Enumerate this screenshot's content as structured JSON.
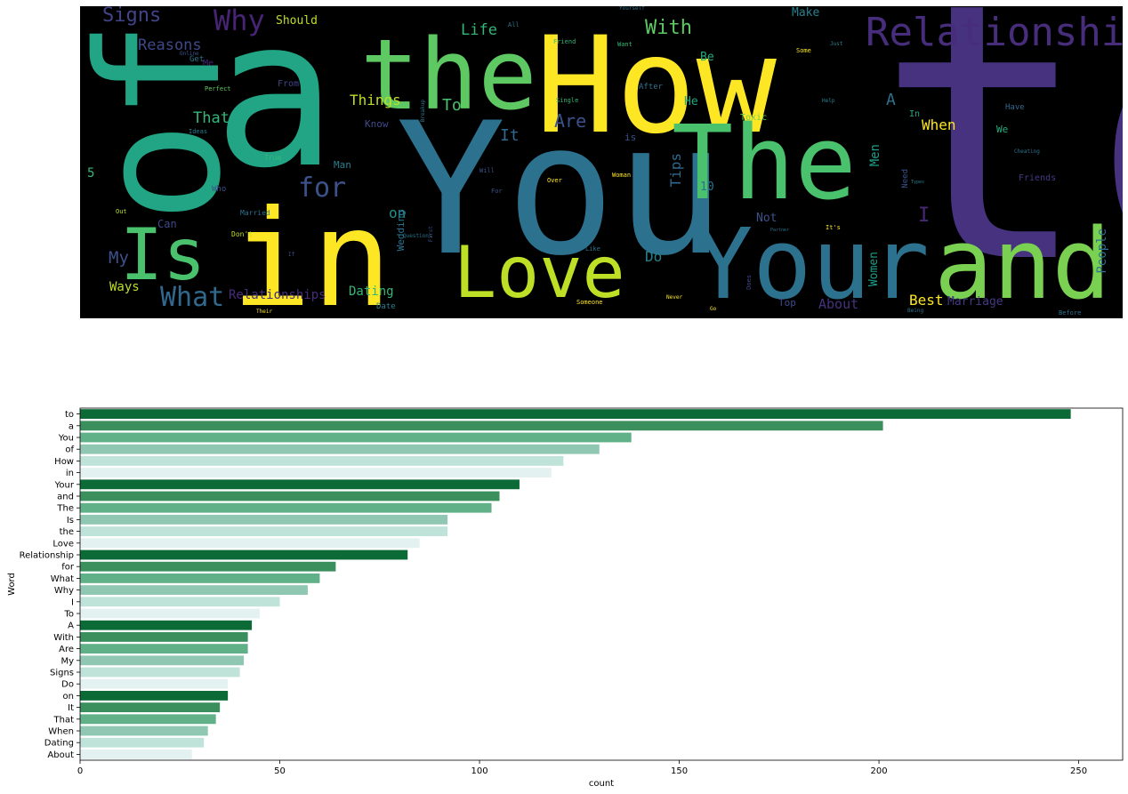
{
  "wordcloud": {
    "words": [
      {
        "text": "to",
        "color": "#46327e"
      },
      {
        "text": "a",
        "color": "#21a585"
      },
      {
        "text": "How",
        "color": "#fde725"
      },
      {
        "text": "You",
        "color": "#2c728e"
      },
      {
        "text": "of",
        "color": "#21a585"
      },
      {
        "text": "in",
        "color": "#fde725"
      },
      {
        "text": "the",
        "color": "#5ec962"
      },
      {
        "text": "The",
        "color": "#4ac16d"
      },
      {
        "text": "Your",
        "color": "#2c728e"
      },
      {
        "text": "and",
        "color": "#7ad151"
      },
      {
        "text": "Love",
        "color": "#bddf26"
      },
      {
        "text": "Is",
        "color": "#4ac16d"
      },
      {
        "text": "Relationship",
        "color": "#472d7b"
      },
      {
        "text": "for",
        "color": "#3b528b"
      },
      {
        "text": "What",
        "color": "#31688e"
      },
      {
        "text": "Why",
        "color": "#482475"
      },
      {
        "text": "Signs",
        "color": "#414487"
      },
      {
        "text": "With",
        "color": "#5ec962"
      },
      {
        "text": "Life",
        "color": "#35b779"
      },
      {
        "text": "Reasons",
        "color": "#3e4989"
      },
      {
        "text": "Should",
        "color": "#bddf26"
      },
      {
        "text": "Make",
        "color": "#27808e"
      },
      {
        "text": "Things",
        "color": "#bddf26"
      },
      {
        "text": "That",
        "color": "#35b779"
      },
      {
        "text": "To",
        "color": "#4ac16d"
      },
      {
        "text": "Are",
        "color": "#3b528b"
      },
      {
        "text": "It",
        "color": "#31688e"
      },
      {
        "text": "A",
        "color": "#2c728e"
      },
      {
        "text": "When",
        "color": "#fde725"
      },
      {
        "text": "Tips",
        "color": "#31688e"
      },
      {
        "text": "Men",
        "color": "#1f9e89"
      },
      {
        "text": "Be",
        "color": "#27ad81"
      },
      {
        "text": "He",
        "color": "#22a884"
      },
      {
        "text": "on",
        "color": "#21918c"
      },
      {
        "text": "Do",
        "color": "#27808e"
      },
      {
        "text": "I",
        "color": "#482878"
      },
      {
        "text": "My",
        "color": "#3b528b"
      },
      {
        "text": "Ways",
        "color": "#bddf26"
      },
      {
        "text": "Can",
        "color": "#3e4989"
      },
      {
        "text": "5",
        "color": "#35b779"
      },
      {
        "text": "Dating",
        "color": "#35b779"
      },
      {
        "text": "Relationships",
        "color": "#472d7b"
      },
      {
        "text": "Wedding",
        "color": "#2c728e"
      },
      {
        "text": "Women",
        "color": "#1f9e89"
      },
      {
        "text": "Best",
        "color": "#fde725"
      },
      {
        "text": "Marriage",
        "color": "#443983"
      },
      {
        "text": "About",
        "color": "#46327e"
      },
      {
        "text": "People",
        "color": "#2c728e"
      },
      {
        "text": "Not",
        "color": "#3b528b"
      },
      {
        "text": "10",
        "color": "#2c728e"
      },
      {
        "text": "Top",
        "color": "#3e4989"
      },
      {
        "text": "Toxic",
        "color": "#6ece58"
      },
      {
        "text": "Know",
        "color": "#3e4989"
      },
      {
        "text": "Man",
        "color": "#27808e"
      },
      {
        "text": "Me",
        "color": "#482475"
      },
      {
        "text": "Get",
        "color": "#2c728e"
      },
      {
        "text": "Friends",
        "color": "#443983"
      },
      {
        "text": "Have",
        "color": "#31688e"
      },
      {
        "text": "We",
        "color": "#27ad81"
      },
      {
        "text": "In",
        "color": "#22a884"
      },
      {
        "text": "Need",
        "color": "#3b528b"
      },
      {
        "text": "Date",
        "color": "#27808e"
      },
      {
        "text": "Who",
        "color": "#3b528b"
      },
      {
        "text": "From",
        "color": "#414487"
      },
      {
        "text": "Married",
        "color": "#2c728e"
      },
      {
        "text": "Don't",
        "color": "#bddf26"
      },
      {
        "text": "Perfect",
        "color": "#5ec962"
      },
      {
        "text": "Ideas",
        "color": "#27808e"
      },
      {
        "text": "True",
        "color": "#35b779"
      },
      {
        "text": "Out",
        "color": "#b5de2b"
      },
      {
        "text": "After",
        "color": "#2c728e"
      },
      {
        "text": "Single",
        "color": "#35b779"
      },
      {
        "text": "Woman",
        "color": "#fde725"
      },
      {
        "text": "Someone",
        "color": "#fde725"
      },
      {
        "text": "Does",
        "color": "#3e4989"
      },
      {
        "text": "It's",
        "color": "#fde725"
      },
      {
        "text": "Cheating",
        "color": "#2c728e"
      },
      {
        "text": "Before",
        "color": "#2c728e"
      },
      {
        "text": "Being",
        "color": "#2c728e"
      },
      {
        "text": "Friend",
        "color": "#35b779"
      },
      {
        "text": "All",
        "color": "#2c728e"
      },
      {
        "text": "Want",
        "color": "#35b779"
      },
      {
        "text": "Just",
        "color": "#27808e"
      },
      {
        "text": "Some",
        "color": "#fde725"
      },
      {
        "text": "Over",
        "color": "#fde725"
      },
      {
        "text": "Will",
        "color": "#3b528b"
      },
      {
        "text": "For",
        "color": "#3b528b"
      },
      {
        "text": "Like",
        "color": "#2c728e"
      },
      {
        "text": "Never",
        "color": "#fde725"
      },
      {
        "text": "Go",
        "color": "#fde725"
      },
      {
        "text": "Help",
        "color": "#27808e"
      },
      {
        "text": "Types",
        "color": "#27808e"
      },
      {
        "text": "Their",
        "color": "#fde725"
      },
      {
        "text": "If",
        "color": "#3b528b"
      },
      {
        "text": "Online",
        "color": "#3b528b"
      },
      {
        "text": "Questions",
        "color": "#2c728e"
      },
      {
        "text": "Breakup",
        "color": "#2c728e"
      },
      {
        "text": "Partner",
        "color": "#2c728e"
      },
      {
        "text": "Yourself",
        "color": "#2c728e"
      },
      {
        "text": "Happy",
        "color": "#2c728e"
      },
      {
        "text": "First",
        "color": "#3b528b"
      },
      {
        "text": "is",
        "color": "#3b528b"
      }
    ]
  },
  "chart_data": {
    "type": "bar",
    "orientation": "horizontal",
    "categories": [
      "to",
      "a",
      "You",
      "of",
      "How",
      "in",
      "Your",
      "and",
      "The",
      "Is",
      "the",
      "Love",
      "Relationship",
      "for",
      "What",
      "Why",
      "I",
      "To",
      "A",
      "With",
      "Are",
      "My",
      "Signs",
      "Do",
      "on",
      "It",
      "That",
      "When",
      "Dating",
      "About"
    ],
    "values": [
      248,
      201,
      138,
      130,
      121,
      118,
      110,
      105,
      103,
      92,
      92,
      85,
      82,
      64,
      60,
      57,
      50,
      45,
      43,
      42,
      42,
      41,
      40,
      37,
      37,
      35,
      34,
      32,
      31,
      28
    ],
    "xlabel": "count",
    "ylabel": "Word",
    "xlim": [
      0,
      261
    ],
    "xticks": [
      0,
      50,
      100,
      150,
      200,
      250
    ],
    "palette": [
      "#0b6a36",
      "#3a8f5c",
      "#60b088",
      "#8fc7b3",
      "#bfe2d9",
      "#e3f2f1"
    ],
    "grid": false,
    "legend": "none"
  }
}
